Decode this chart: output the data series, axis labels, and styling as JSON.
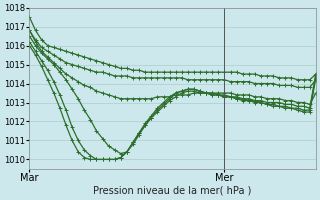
{
  "xlabel": "Pression niveau de la mer( hPa )",
  "ylim": [
    1009.5,
    1018.0
  ],
  "xlim": [
    0,
    47
  ],
  "bg_color": "#cce8ec",
  "grid_color": "#aacccc",
  "line_color": "#2d6e2d",
  "marker": "+",
  "markersize": 3,
  "linewidth": 0.9,
  "xtick_mar": 0,
  "xtick_mer": 32,
  "vline_x": 32,
  "yticks": [
    1010,
    1011,
    1012,
    1013,
    1014,
    1015,
    1016,
    1017,
    1018
  ],
  "series": [
    [
      1017.5,
      1016.8,
      1016.3,
      1016.0,
      1015.9,
      1015.8,
      1015.7,
      1015.6,
      1015.5,
      1015.4,
      1015.3,
      1015.2,
      1015.1,
      1015.0,
      1014.9,
      1014.8,
      1014.8,
      1014.7,
      1014.7,
      1014.6,
      1014.6,
      1014.6,
      1014.6,
      1014.6,
      1014.6,
      1014.6,
      1014.6,
      1014.6,
      1014.6,
      1014.6,
      1014.6,
      1014.6,
      1014.6,
      1014.6,
      1014.6,
      1014.5,
      1014.5,
      1014.5,
      1014.4,
      1014.4,
      1014.4,
      1014.3,
      1014.3,
      1014.3,
      1014.2,
      1014.2,
      1014.2,
      1014.5
    ],
    [
      1016.8,
      1016.3,
      1015.9,
      1015.7,
      1015.5,
      1015.3,
      1015.1,
      1015.0,
      1014.9,
      1014.8,
      1014.7,
      1014.6,
      1014.6,
      1014.5,
      1014.4,
      1014.4,
      1014.4,
      1014.3,
      1014.3,
      1014.3,
      1014.3,
      1014.3,
      1014.3,
      1014.3,
      1014.3,
      1014.3,
      1014.2,
      1014.2,
      1014.2,
      1014.2,
      1014.2,
      1014.2,
      1014.2,
      1014.1,
      1014.1,
      1014.1,
      1014.1,
      1014.0,
      1014.0,
      1014.0,
      1014.0,
      1013.9,
      1013.9,
      1013.9,
      1013.8,
      1013.8,
      1013.8,
      1014.2
    ],
    [
      1016.5,
      1016.0,
      1015.6,
      1015.3,
      1015.0,
      1014.6,
      1014.2,
      1013.7,
      1013.2,
      1012.6,
      1012.1,
      1011.5,
      1011.1,
      1010.7,
      1010.5,
      1010.3,
      1010.4,
      1010.8,
      1011.3,
      1011.8,
      1012.2,
      1012.6,
      1012.9,
      1013.2,
      1013.5,
      1013.6,
      1013.7,
      1013.7,
      1013.6,
      1013.5,
      1013.5,
      1013.4,
      1013.4,
      1013.3,
      1013.3,
      1013.2,
      1013.2,
      1013.1,
      1013.1,
      1013.0,
      1013.0,
      1013.0,
      1012.9,
      1012.9,
      1012.8,
      1012.8,
      1012.7,
      1014.5
    ],
    [
      1016.2,
      1015.7,
      1015.2,
      1014.7,
      1014.1,
      1013.4,
      1012.6,
      1011.7,
      1011.0,
      1010.5,
      1010.2,
      1010.0,
      1010.0,
      1010.0,
      1010.0,
      1010.1,
      1010.4,
      1010.9,
      1011.4,
      1011.9,
      1012.3,
      1012.7,
      1013.0,
      1013.3,
      1013.5,
      1013.6,
      1013.7,
      1013.7,
      1013.6,
      1013.5,
      1013.4,
      1013.4,
      1013.3,
      1013.3,
      1013.2,
      1013.2,
      1013.1,
      1013.1,
      1013.0,
      1012.9,
      1012.9,
      1012.8,
      1012.8,
      1012.7,
      1012.7,
      1012.6,
      1012.6,
      1014.4
    ],
    [
      1016.0,
      1015.5,
      1014.9,
      1014.2,
      1013.5,
      1012.7,
      1011.8,
      1011.0,
      1010.4,
      1010.1,
      1010.0,
      1010.0,
      1010.0,
      1010.0,
      1010.0,
      1010.1,
      1010.4,
      1010.9,
      1011.4,
      1011.8,
      1012.2,
      1012.5,
      1012.8,
      1013.1,
      1013.3,
      1013.5,
      1013.6,
      1013.6,
      1013.5,
      1013.5,
      1013.4,
      1013.4,
      1013.3,
      1013.3,
      1013.2,
      1013.1,
      1013.1,
      1013.0,
      1013.0,
      1012.9,
      1012.8,
      1012.8,
      1012.7,
      1012.7,
      1012.6,
      1012.5,
      1012.5,
      1014.3
    ],
    [
      1016.8,
      1016.2,
      1015.7,
      1015.4,
      1015.1,
      1014.8,
      1014.5,
      1014.3,
      1014.1,
      1013.9,
      1013.8,
      1013.6,
      1013.5,
      1013.4,
      1013.3,
      1013.2,
      1013.2,
      1013.2,
      1013.2,
      1013.2,
      1013.2,
      1013.3,
      1013.3,
      1013.3,
      1013.4,
      1013.4,
      1013.4,
      1013.5,
      1013.5,
      1013.5,
      1013.5,
      1013.5,
      1013.5,
      1013.5,
      1013.4,
      1013.4,
      1013.4,
      1013.3,
      1013.3,
      1013.2,
      1013.2,
      1013.2,
      1013.1,
      1013.1,
      1013.0,
      1013.0,
      1012.9,
      1013.5
    ]
  ]
}
